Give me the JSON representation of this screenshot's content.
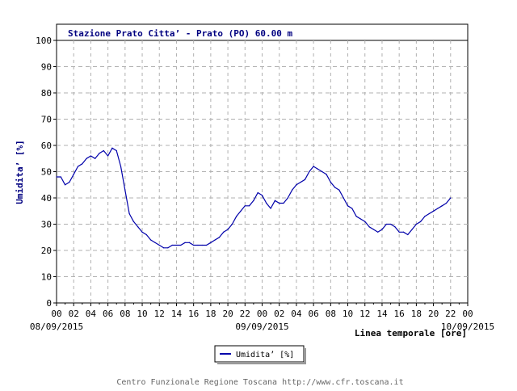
{
  "chart_data": {
    "type": "line",
    "title": "Stazione Prato Citta’ - Prato (PO) 60.00 m",
    "ylabel": "Umidita’ [%]",
    "xlabel": "Linea temporale [ore]",
    "ylim": [
      0,
      100
    ],
    "xlim_hours": [
      0,
      48
    ],
    "yticks": [
      0,
      10,
      20,
      30,
      40,
      50,
      60,
      70,
      80,
      90,
      100
    ],
    "xtick_labels": [
      "00",
      "02",
      "04",
      "06",
      "08",
      "10",
      "12",
      "14",
      "16",
      "18",
      "20",
      "22",
      "00",
      "02",
      "04",
      "06",
      "08",
      "10",
      "12",
      "14",
      "16",
      "18",
      "20",
      "22",
      "00"
    ],
    "date_labels": [
      {
        "label": "08/09/2015",
        "hour": 0
      },
      {
        "label": "09/09/2015",
        "hour": 24
      },
      {
        "label": "10/09/2015",
        "hour": 48
      }
    ],
    "grid": true,
    "legend_position": "bottom-center",
    "series": [
      {
        "name": "Umidita’ [%]",
        "color": "#0000aa",
        "x": [
          0,
          0.5,
          1,
          1.5,
          2,
          2.5,
          3,
          3.5,
          4,
          4.5,
          5,
          5.5,
          6,
          6.5,
          7,
          7.5,
          8,
          8.5,
          9,
          9.5,
          10,
          10.5,
          11,
          11.5,
          12,
          12.5,
          13,
          13.5,
          14,
          14.5,
          15,
          15.5,
          16,
          16.5,
          17,
          17.5,
          18,
          18.5,
          19,
          19.5,
          20,
          20.5,
          21,
          21.5,
          22,
          22.5,
          23,
          23.5,
          24,
          24.5,
          25,
          25.5,
          26,
          26.5,
          27,
          27.5,
          28,
          28.5,
          29,
          29.5,
          30,
          30.5,
          31,
          31.5,
          32,
          32.5,
          33,
          33.5,
          34,
          34.5,
          35,
          35.5,
          36,
          36.5,
          37,
          37.5,
          38,
          38.5,
          39,
          39.5,
          40,
          40.5,
          41,
          41.5,
          42,
          42.5,
          43,
          43.5,
          44,
          44.5,
          45,
          45.5,
          46
        ],
        "values": [
          48,
          48,
          45,
          46,
          49,
          52,
          53,
          55,
          56,
          55,
          57,
          58,
          56,
          59,
          58,
          52,
          43,
          34,
          31,
          29,
          27,
          26,
          24,
          23,
          22,
          21,
          21,
          22,
          22,
          22,
          23,
          23,
          22,
          22,
          22,
          22,
          23,
          24,
          25,
          27,
          28,
          30,
          33,
          35,
          37,
          37,
          39,
          42,
          41,
          38,
          36,
          39,
          38,
          38,
          40,
          43,
          45,
          46,
          47,
          50,
          52,
          51,
          50,
          49,
          46,
          44,
          43,
          40,
          37,
          36,
          33,
          32,
          31,
          29,
          28,
          27,
          28,
          30,
          30,
          29,
          27,
          27,
          26,
          28,
          30,
          31,
          33,
          34,
          35,
          36,
          37,
          38,
          40
        ]
      }
    ]
  },
  "footer": "Centro Funzionale Regione Toscana http://www.cfr.toscana.it"
}
